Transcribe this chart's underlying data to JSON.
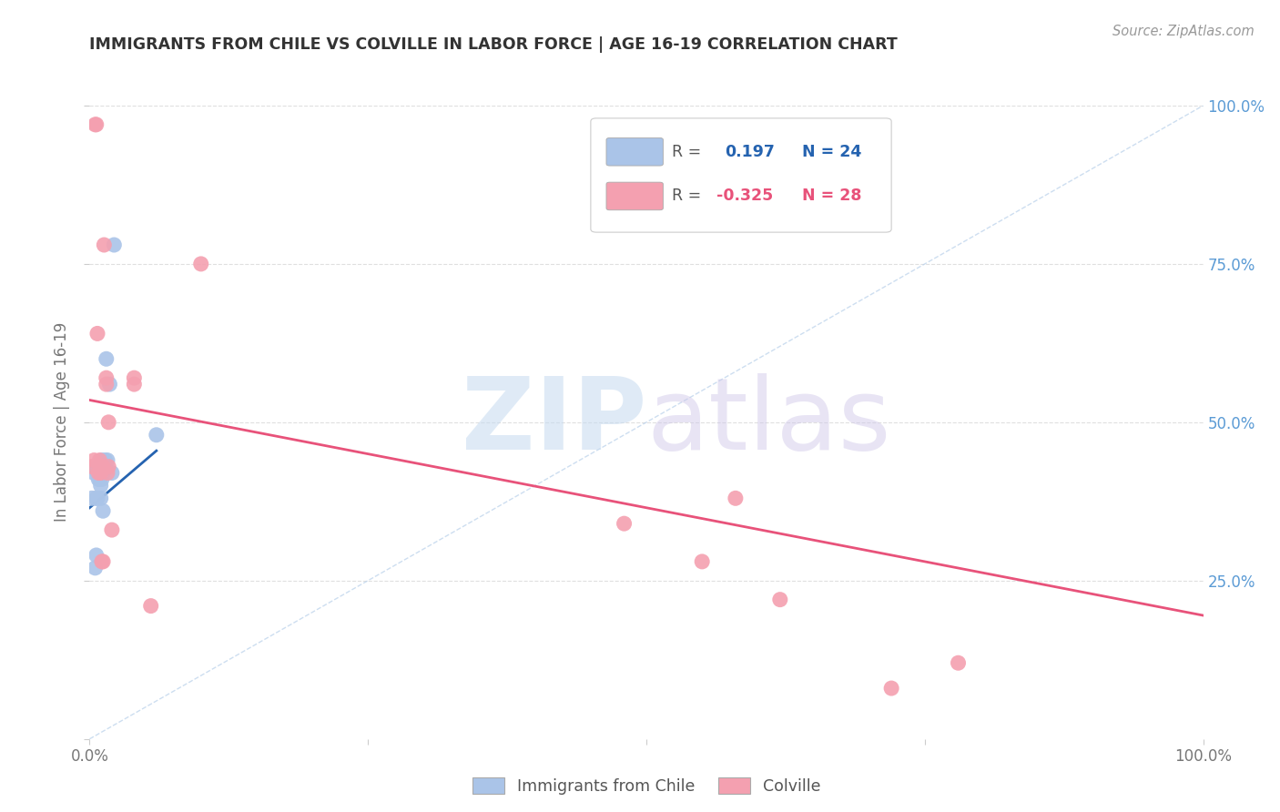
{
  "title": "IMMIGRANTS FROM CHILE VS COLVILLE IN LABOR FORCE | AGE 16-19 CORRELATION CHART",
  "source": "Source: ZipAtlas.com",
  "ylabel": "In Labor Force | Age 16-19",
  "xlim": [
    0,
    1
  ],
  "ylim": [
    0,
    1
  ],
  "blue_label": "Immigrants from Chile",
  "pink_label": "Colville",
  "blue_R": 0.197,
  "blue_N": 24,
  "pink_R": -0.325,
  "pink_N": 28,
  "blue_scatter_x": [
    0.002,
    0.004,
    0.005,
    0.006,
    0.006,
    0.007,
    0.007,
    0.008,
    0.008,
    0.009,
    0.009,
    0.01,
    0.01,
    0.011,
    0.011,
    0.012,
    0.012,
    0.014,
    0.015,
    0.016,
    0.018,
    0.02,
    0.022,
    0.06
  ],
  "blue_scatter_y": [
    0.38,
    0.42,
    0.27,
    0.29,
    0.38,
    0.38,
    0.42,
    0.41,
    0.43,
    0.41,
    0.43,
    0.38,
    0.4,
    0.41,
    0.44,
    0.36,
    0.42,
    0.44,
    0.6,
    0.44,
    0.56,
    0.42,
    0.78,
    0.48
  ],
  "blue_line_x": [
    0.0,
    0.06
  ],
  "blue_line_y": [
    0.365,
    0.455
  ],
  "pink_scatter_x": [
    0.002,
    0.004,
    0.005,
    0.006,
    0.007,
    0.008,
    0.009,
    0.01,
    0.011,
    0.012,
    0.012,
    0.013,
    0.015,
    0.015,
    0.016,
    0.017,
    0.017,
    0.02,
    0.04,
    0.04,
    0.055,
    0.1,
    0.48,
    0.55,
    0.58,
    0.62,
    0.72,
    0.78
  ],
  "pink_scatter_y": [
    0.43,
    0.44,
    0.97,
    0.97,
    0.64,
    0.42,
    0.44,
    0.42,
    0.28,
    0.28,
    0.43,
    0.78,
    0.56,
    0.57,
    0.42,
    0.43,
    0.5,
    0.33,
    0.56,
    0.57,
    0.21,
    0.75,
    0.34,
    0.28,
    0.38,
    0.22,
    0.08,
    0.12
  ],
  "pink_line_x": [
    0.0,
    1.0
  ],
  "pink_line_y": [
    0.535,
    0.195
  ],
  "diagonal_line_x": [
    0.0,
    1.0
  ],
  "diagonal_line_y": [
    0.0,
    1.0
  ],
  "blue_color": "#aac4e8",
  "pink_color": "#f4a0b0",
  "blue_line_color": "#2563b0",
  "pink_line_color": "#e8527a",
  "diagonal_color": "#b8d0ea",
  "background_color": "#ffffff",
  "grid_color": "#d8d8d8",
  "title_color": "#333333",
  "right_tick_color": "#5b9bd5",
  "left_tick_color": "#888888"
}
